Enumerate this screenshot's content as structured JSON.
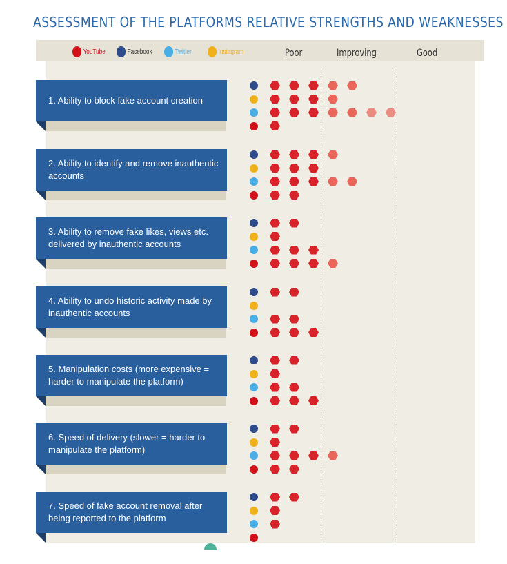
{
  "title": "ASSESSMENT OF THE PLATFORMS RELATIVE STRENGTHS AND WEAKNESSES",
  "legend": [
    {
      "key": "youtube",
      "label": "YouTube",
      "color": "#d3111a",
      "icon": "youtube-icon"
    },
    {
      "key": "facebook",
      "label": "Facebook",
      "color": "#2d4a8a",
      "icon": "facebook-icon"
    },
    {
      "key": "twitter",
      "label": "Twitter",
      "color": "#4aaee6",
      "icon": "twitter-icon"
    },
    {
      "key": "instagram",
      "label": "Instagram",
      "color": "#f0b21a",
      "icon": "instagram-icon"
    }
  ],
  "scale": [
    "Poor",
    "Improving",
    "Good"
  ],
  "colors": {
    "strong_dot": "#d8232a",
    "light_dot": "#e8675a",
    "faint_dot": "#eb8c80"
  },
  "chart_data": {
    "type": "dot-matrix",
    "scale_levels": [
      "Poor",
      "Improving",
      "Good"
    ],
    "platform_order": [
      "facebook",
      "instagram",
      "twitter",
      "youtube"
    ],
    "categories": [
      {
        "label": "1. Ability to block fake account creation",
        "values": {
          "facebook": 5,
          "instagram": 4,
          "twitter": 7,
          "youtube": 1
        }
      },
      {
        "label": "2. Ability to identify and remove inauthentic accounts",
        "values": {
          "facebook": 4,
          "instagram": 3,
          "twitter": 5,
          "youtube": 2
        }
      },
      {
        "label": "3. Ability to remove fake likes, views etc. delivered by inauthentic accounts",
        "values": {
          "facebook": 2,
          "instagram": 1,
          "twitter": 3,
          "youtube": 4
        }
      },
      {
        "label": "4. Ability to undo historic activity made by inauthentic accounts",
        "values": {
          "facebook": 2,
          "instagram": 0,
          "twitter": 2,
          "youtube": 3
        }
      },
      {
        "label": "5. Manipulation costs (more expensive = harder to manipulate the platform)",
        "values": {
          "facebook": 2,
          "instagram": 1,
          "twitter": 2,
          "youtube": 3
        }
      },
      {
        "label": "6. Speed of delivery (slower = harder to manipulate the platform)",
        "values": {
          "facebook": 2,
          "instagram": 1,
          "twitter": 4,
          "youtube": 2
        }
      },
      {
        "label": "7. Speed of fake account removal after being reported to the platform",
        "values": {
          "facebook": 2,
          "instagram": 1,
          "twitter": 1,
          "youtube": 0
        }
      }
    ]
  }
}
